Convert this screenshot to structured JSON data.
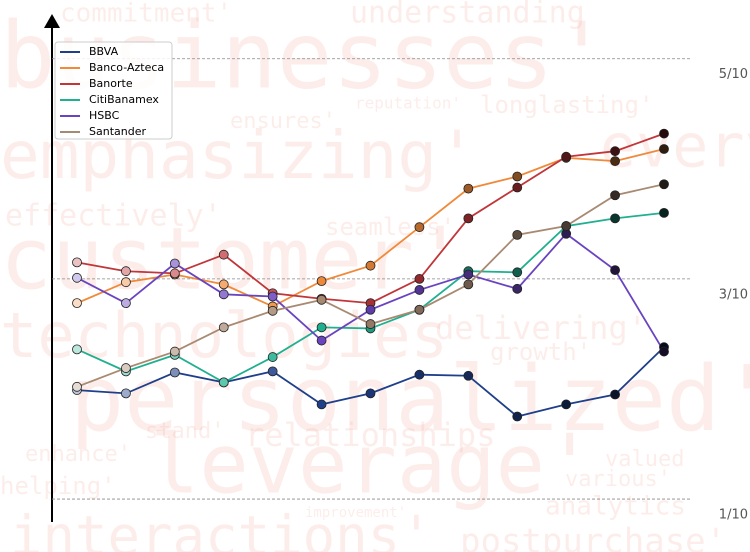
{
  "chart_data": {
    "type": "line",
    "categories": [
      null,
      null,
      null,
      null,
      null,
      null,
      null,
      null,
      null,
      null,
      null,
      null,
      null
    ],
    "series": [
      {
        "name": "BBVA",
        "color": "#1f3f8a",
        "values": [
          1.99,
          1.96,
          2.15,
          2.06,
          2.16,
          1.86,
          1.96,
          2.13,
          2.12,
          1.75,
          1.86,
          1.95,
          2.38
        ]
      },
      {
        "name": "Banco-Azteca",
        "color": "#f08a3a",
        "values": [
          2.78,
          2.97,
          3.04,
          2.95,
          2.75,
          2.98,
          3.12,
          3.47,
          3.82,
          3.93,
          4.1,
          4.07,
          4.18
        ]
      },
      {
        "name": "Banorte",
        "color": "#c0363a",
        "values": [
          3.15,
          3.07,
          3.05,
          3.22,
          2.87,
          2.82,
          2.78,
          3.0,
          3.55,
          3.83,
          4.11,
          4.16,
          4.32
        ]
      },
      {
        "name": "CitiBanamex",
        "color": "#20b08f",
        "values": [
          2.36,
          2.16,
          2.31,
          2.06,
          2.29,
          2.56,
          2.55,
          2.72,
          3.07,
          3.06,
          3.48,
          3.55,
          3.6
        ]
      },
      {
        "name": "HSBC",
        "color": "#6a44c0",
        "values": [
          3.01,
          2.78,
          3.14,
          2.86,
          2.84,
          2.44,
          2.72,
          2.9,
          3.04,
          2.91,
          3.41,
          3.08,
          2.34
        ]
      },
      {
        "name": "Santander",
        "color": "#a88a72",
        "values": [
          2.02,
          2.19,
          2.34,
          2.56,
          2.71,
          2.81,
          2.59,
          2.72,
          2.95,
          3.4,
          3.48,
          3.76,
          3.86
        ]
      }
    ],
    "ylim": [
      0.81,
      5.37
    ],
    "yticks": [
      {
        "value": 1,
        "label": "1/10"
      },
      {
        "value": 3,
        "label": "3/10"
      },
      {
        "value": 5,
        "label": "5/10"
      }
    ],
    "grid": true,
    "legend": "upper left",
    "background_words": [
      "businesses'",
      "emphasizing'",
      "customer'",
      "technologies",
      "personalized'",
      "leverage'",
      "interactions'",
      "postpurchase'",
      "understanding",
      "commitment'",
      "effectively'",
      "delivering'",
      "relationships",
      "longlasting'",
      "ensures'",
      "seamless'",
      "enhance'",
      "helping'",
      "various'",
      "analytics",
      "growth'",
      "valued",
      "stand'",
      "reputation'",
      "every'",
      "improvement'"
    ]
  }
}
